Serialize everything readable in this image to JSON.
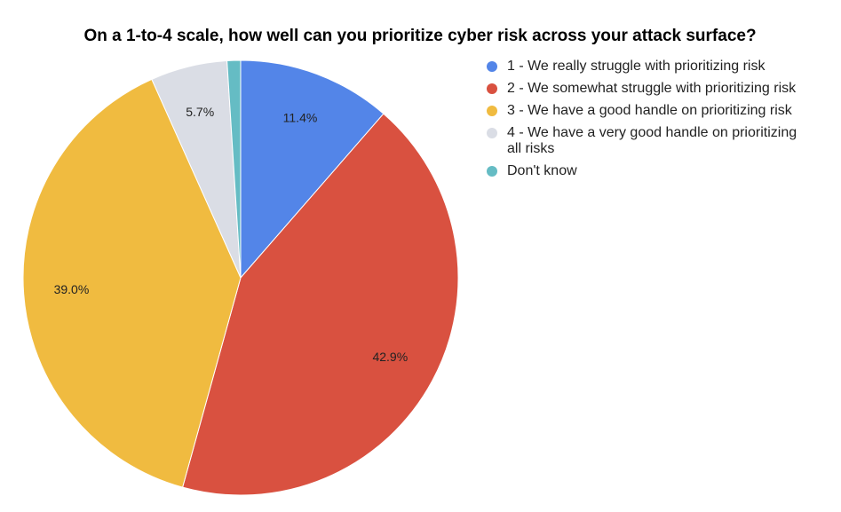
{
  "chart_data": {
    "type": "pie",
    "title": "On a 1-to-4 scale, how well can you prioritize cyber risk across your attack surface?",
    "categories": [
      "1 - We really struggle with prioritizing risk",
      "2 - We somewhat struggle with prioritizing risk",
      "3 - We have a good handle on prioritizing risk",
      "4 - We have a very good handle on prioritizing all risks",
      "Don't know"
    ],
    "values": [
      11.4,
      42.9,
      39.0,
      5.7,
      1.0
    ],
    "value_labels": [
      "11.4%",
      "42.9%",
      "39.0%",
      "5.7%",
      null
    ],
    "colors": [
      "#5385e8",
      "#d95140",
      "#f0bb40",
      "#dadde5",
      "#65bcc4"
    ]
  }
}
